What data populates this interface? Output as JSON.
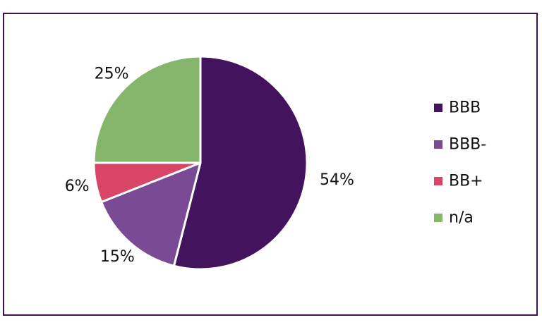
{
  "chart_data": {
    "type": "pie",
    "title": "",
    "slices": [
      {
        "label": "BBB",
        "value": 54,
        "value_label": "54%",
        "color": "#43145d"
      },
      {
        "label": "BBB-",
        "value": 15,
        "value_label": "15%",
        "color": "#7a4b94"
      },
      {
        "label": "BB+",
        "value": 6,
        "value_label": "6%",
        "color": "#d94567"
      },
      {
        "label": "n/a",
        "value": 25,
        "value_label": "25%",
        "color": "#86b56c"
      }
    ],
    "legend": {
      "position": "right"
    },
    "slice_border_color": "#ffffff"
  }
}
